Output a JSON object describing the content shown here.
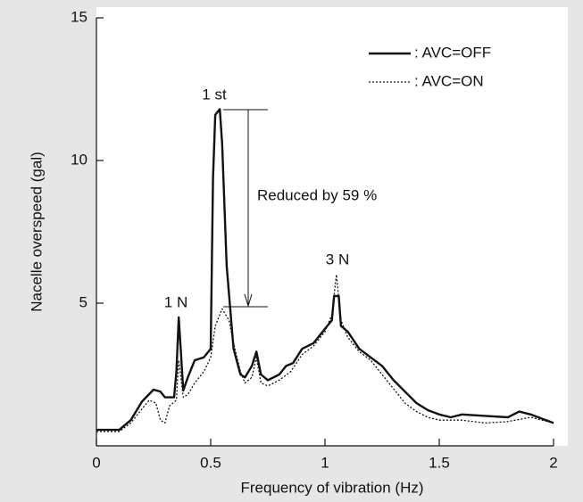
{
  "chart_data": {
    "type": "line",
    "x_label": "Frequency of vibration (Hz)",
    "y_label": "Nacelle overspeed (gal)",
    "xlim": [
      0,
      2
    ],
    "xticks": [
      0,
      0.5,
      1,
      1.5,
      2
    ],
    "ylim": [
      0,
      15
    ],
    "yticks": [
      5,
      10,
      15
    ],
    "annotations": [
      "1 st",
      "1 N",
      "3 N",
      "Reduced by 59 %"
    ],
    "series": [
      {
        "name": ": AVC=OFF",
        "color": "#111111",
        "style": "solid",
        "x": [
          0,
          0.1,
          0.15,
          0.2,
          0.25,
          0.28,
          0.3,
          0.34,
          0.35,
          0.36,
          0.38,
          0.4,
          0.43,
          0.47,
          0.5,
          0.51,
          0.52,
          0.54,
          0.55,
          0.57,
          0.6,
          0.63,
          0.65,
          0.68,
          0.7,
          0.72,
          0.75,
          0.8,
          0.83,
          0.86,
          0.9,
          0.95,
          1.0,
          1.03,
          1.04,
          1.06,
          1.07,
          1.1,
          1.15,
          1.2,
          1.25,
          1.3,
          1.35,
          1.4,
          1.45,
          1.5,
          1.55,
          1.6,
          1.7,
          1.8,
          1.85,
          1.9,
          1.95,
          2.0
        ],
        "values": [
          0.56,
          0.56,
          0.9,
          1.56,
          1.97,
          1.9,
          1.7,
          1.7,
          2.6,
          4.5,
          1.94,
          2.4,
          3.0,
          3.1,
          3.4,
          9.4,
          11.6,
          11.8,
          10.6,
          6.3,
          3.4,
          2.5,
          2.4,
          2.8,
          3.3,
          2.5,
          2.3,
          2.5,
          2.8,
          2.9,
          3.4,
          3.6,
          4.1,
          4.4,
          5.25,
          5.25,
          4.2,
          4.0,
          3.4,
          3.1,
          2.8,
          2.3,
          1.9,
          1.5,
          1.25,
          1.1,
          1.0,
          1.1,
          1.05,
          1.0,
          1.2,
          1.1,
          0.95,
          0.8
        ]
      },
      {
        "name": ": AVC=ON",
        "color": "#111111",
        "style": "dotted",
        "x": [
          0,
          0.1,
          0.15,
          0.2,
          0.23,
          0.26,
          0.28,
          0.3,
          0.32,
          0.35,
          0.36,
          0.38,
          0.4,
          0.43,
          0.47,
          0.5,
          0.52,
          0.55,
          0.58,
          0.6,
          0.63,
          0.65,
          0.68,
          0.7,
          0.72,
          0.75,
          0.8,
          0.85,
          0.9,
          0.95,
          1.0,
          1.03,
          1.05,
          1.07,
          1.1,
          1.15,
          1.2,
          1.25,
          1.3,
          1.35,
          1.4,
          1.45,
          1.5,
          1.6,
          1.7,
          1.8,
          1.9,
          2.0
        ],
        "values": [
          0.5,
          0.5,
          0.8,
          1.3,
          1.6,
          1.5,
          0.9,
          0.8,
          1.4,
          1.6,
          3.0,
          1.7,
          1.8,
          2.2,
          2.6,
          3.1,
          4.2,
          4.8,
          4.4,
          3.6,
          2.6,
          2.2,
          2.4,
          3.1,
          2.2,
          2.1,
          2.3,
          2.6,
          3.2,
          3.5,
          4.0,
          4.6,
          6.0,
          4.4,
          3.8,
          3.3,
          3.0,
          2.5,
          2.0,
          1.5,
          1.2,
          1.0,
          0.9,
          0.9,
          0.8,
          0.85,
          1.0,
          0.8
        ]
      }
    ]
  }
}
